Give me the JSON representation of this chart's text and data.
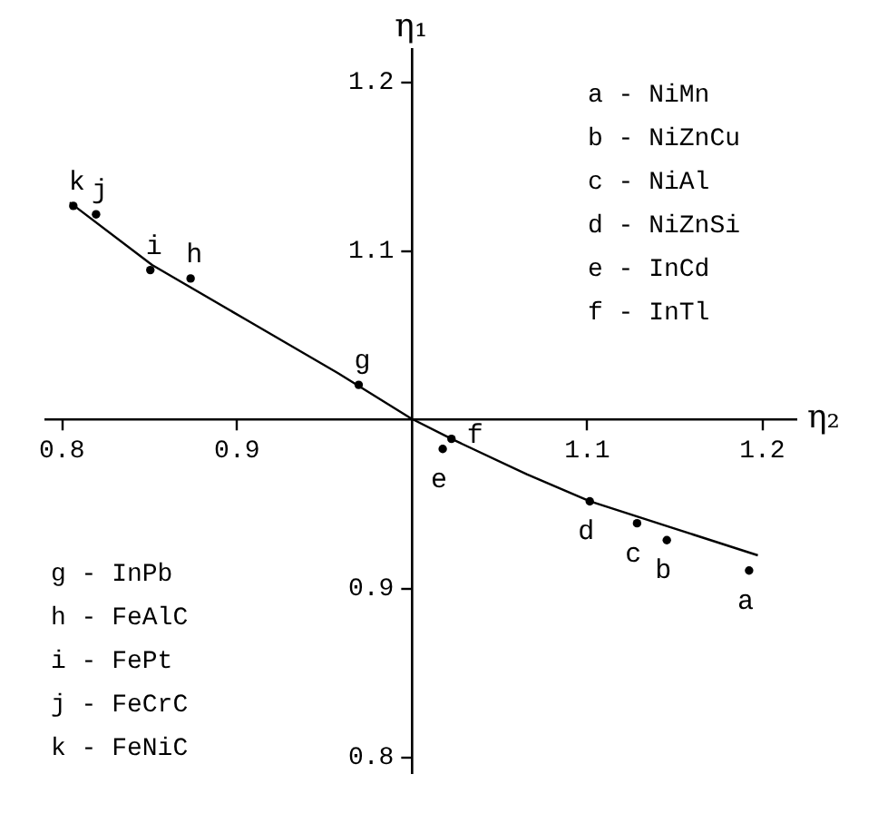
{
  "chart_data": {
    "type": "scatter",
    "xlabel": "η₂",
    "ylabel": "η₁",
    "xlim": [
      0.79,
      1.22
    ],
    "ylim": [
      0.79,
      1.22
    ],
    "xticks": [
      0.8,
      0.9,
      1.1,
      1.2
    ],
    "yticks": [
      0.8,
      0.9,
      1.1,
      1.2
    ],
    "grid": false,
    "marker": "circle",
    "series": [
      {
        "color": "#000000",
        "x": [
          1.193,
          1.146,
          1.129,
          1.102,
          1.018,
          1.023,
          0.97,
          0.874,
          0.851,
          0.82,
          0.807
        ],
        "values": [
          0.91,
          0.928,
          0.938,
          0.951,
          0.982,
          0.988,
          1.02,
          1.083,
          1.088,
          1.121,
          1.126
        ]
      },
      {
        "type": "line",
        "color": "#000000",
        "line_style": "solid",
        "marker": "none",
        "x": [
          0.805,
          0.852,
          0.905,
          0.958,
          1.0,
          1.023,
          1.066,
          1.102,
          1.147,
          1.198
        ],
        "values": [
          1.128,
          1.091,
          1.059,
          1.027,
          1.0,
          0.988,
          0.967,
          0.951,
          0.936,
          0.919
        ]
      }
    ],
    "annotations": [
      {
        "text": "a",
        "x": 1.193,
        "y": 0.91
      },
      {
        "text": "b",
        "x": 1.146,
        "y": 0.928
      },
      {
        "text": "c",
        "x": 1.129,
        "y": 0.938
      },
      {
        "text": "d",
        "x": 1.102,
        "y": 0.951
      },
      {
        "text": "e",
        "x": 1.018,
        "y": 0.982
      },
      {
        "text": "f",
        "x": 1.023,
        "y": 0.988
      },
      {
        "text": "g",
        "x": 0.97,
        "y": 1.02
      },
      {
        "text": "h",
        "x": 0.874,
        "y": 1.083
      },
      {
        "text": "i",
        "x": 0.851,
        "y": 1.088
      },
      {
        "text": "j",
        "x": 0.82,
        "y": 1.121
      },
      {
        "text": "k",
        "x": 0.807,
        "y": 1.126
      },
      "a -  NiMn",
      "b -  NiZnCu",
      "c -  NiAl",
      "d -  NiZnSi",
      "e -  InCd",
      "f -  InTl",
      "g -  InPb",
      "h -  FeAlC",
      "i -  FePt",
      "j -  FeCrC",
      "k -  FeNiC"
    ]
  }
}
